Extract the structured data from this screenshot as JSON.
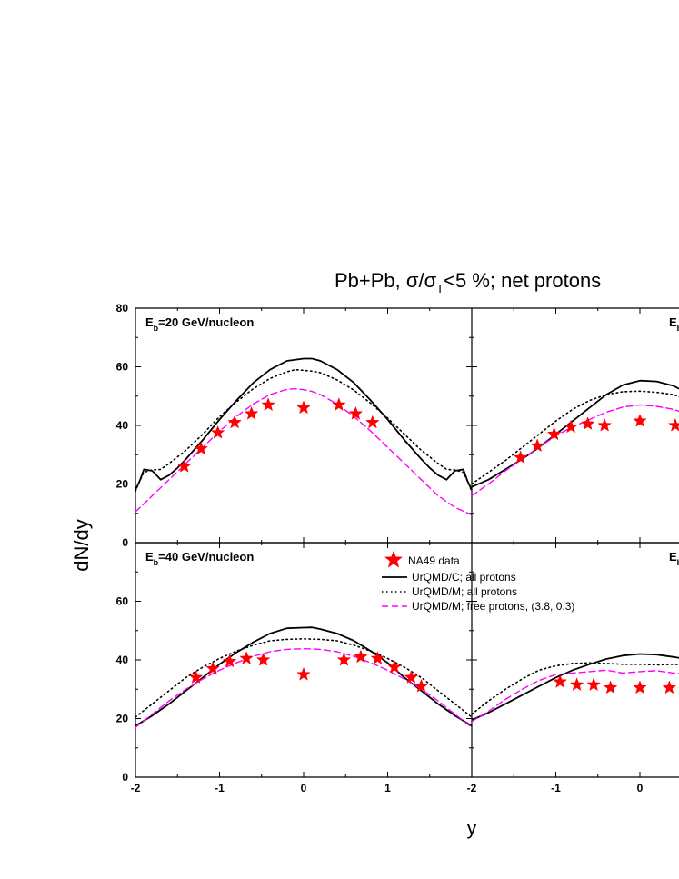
{
  "figure": {
    "title_prefix": "Pb+Pb, ",
    "title_sigma": "σ/σ",
    "title_sub": "T",
    "title_suffix": "<5 %; net protons",
    "ylabel": "dN/dy",
    "xlabel": "y"
  },
  "legend": {
    "items": [
      {
        "key": "data",
        "label": "NA49 data"
      },
      {
        "key": "c",
        "label": "UrQMD/C; all protons"
      },
      {
        "key": "m",
        "label": "UrQMD/M; all protons"
      },
      {
        "key": "free",
        "label": "UrQMD/M; free protons, (3.8, 0.3)"
      }
    ]
  },
  "colors": {
    "data": "#ff0000",
    "c": "#000000",
    "m": "#000000",
    "free": "#ff00ff"
  },
  "chart_data": [
    {
      "type": "line",
      "panel": "top-left",
      "label_main": "E",
      "label_sub": "b",
      "label_rest": "=20 GeV/nucleon",
      "xlim": [
        -2,
        2
      ],
      "ylim": [
        0,
        80
      ],
      "yticks": [
        0,
        20,
        40,
        60,
        80
      ],
      "xticks": [
        -2,
        -1,
        0,
        1,
        2
      ],
      "series": [
        {
          "name": "UrQMD/C; all protons",
          "key": "c",
          "x": [
            -2.0,
            -1.95,
            -1.9,
            -1.8,
            -1.75,
            -1.7,
            -1.6,
            -1.5,
            -1.4,
            -1.2,
            -1.0,
            -0.8,
            -0.6,
            -0.4,
            -0.2,
            0.0,
            0.1,
            0.2,
            0.4,
            0.6,
            0.8,
            1.0,
            1.2,
            1.4,
            1.5,
            1.6,
            1.7,
            1.75,
            1.8,
            1.9,
            1.95,
            2.0
          ],
          "y": [
            18,
            21,
            25,
            24.5,
            23,
            21.5,
            23,
            25.5,
            28.5,
            35,
            42,
            48.5,
            54.5,
            59,
            62,
            62.8,
            62.8,
            62,
            59,
            54.5,
            48.5,
            42,
            35,
            28.5,
            25.5,
            23,
            21.5,
            23,
            24.5,
            25,
            21,
            18
          ]
        },
        {
          "name": "UrQMD/M; all protons",
          "key": "m",
          "x": [
            -2.0,
            -1.95,
            -1.9,
            -1.8,
            -1.7,
            -1.6,
            -1.4,
            -1.2,
            -1.0,
            -0.8,
            -0.6,
            -0.4,
            -0.2,
            -0.1,
            0.0,
            0.1,
            0.2,
            0.4,
            0.6,
            0.8,
            1.0,
            1.2,
            1.4,
            1.6,
            1.7,
            1.8,
            1.9,
            1.95,
            2.0
          ],
          "y": [
            17.5,
            21,
            24,
            24.8,
            25,
            27,
            31.5,
            37,
            43,
            48,
            52.5,
            56,
            58.3,
            59,
            58.8,
            58.5,
            58,
            55.5,
            52,
            47.5,
            42.5,
            37,
            31.5,
            27,
            25,
            24.8,
            24,
            21,
            17.5
          ]
        },
        {
          "name": "UrQMD/M; free protons, (3.8, 0.3)",
          "key": "free",
          "x": [
            -2.0,
            -1.8,
            -1.6,
            -1.4,
            -1.2,
            -1.0,
            -0.8,
            -0.6,
            -0.4,
            -0.2,
            -0.1,
            0.0,
            0.1,
            0.2,
            0.4,
            0.6,
            0.8,
            1.0,
            1.2,
            1.4,
            1.6,
            1.8,
            2.0
          ],
          "y": [
            10.5,
            16,
            21.5,
            27,
            32.5,
            38,
            43,
            47.3,
            50.5,
            52.3,
            52.5,
            52.2,
            51.6,
            50.5,
            47.3,
            43,
            38,
            32.5,
            27,
            21.5,
            16,
            12,
            9.5
          ]
        },
        {
          "name": "NA49 data",
          "key": "data",
          "marker": "star",
          "x": [
            -1.42,
            -1.22,
            -1.02,
            -0.82,
            -0.62,
            -0.42,
            0.0,
            0.42,
            0.62,
            0.82
          ],
          "y": [
            26,
            32,
            37.5,
            41,
            44,
            47,
            46,
            47,
            44,
            41
          ]
        }
      ]
    },
    {
      "type": "line",
      "panel": "top-right",
      "label_main": "E",
      "label_sub": "b",
      "label_rest": "",
      "xlim": [
        -2,
        2
      ],
      "ylim": [
        0,
        80
      ],
      "series": [
        {
          "name": "UrQMD/C; all protons",
          "key": "c",
          "x": [
            -2.0,
            -1.8,
            -1.6,
            -1.4,
            -1.2,
            -1.0,
            -0.8,
            -0.6,
            -0.4,
            -0.2,
            0.0,
            0.2,
            0.4,
            0.5
          ],
          "y": [
            19,
            21.5,
            25,
            28.5,
            32.5,
            37,
            41.5,
            46,
            50.5,
            53.8,
            55.3,
            55,
            53.5,
            52
          ]
        },
        {
          "name": "UrQMD/M; all protons",
          "key": "m",
          "x": [
            -2.0,
            -1.8,
            -1.6,
            -1.4,
            -1.2,
            -1.0,
            -0.8,
            -0.6,
            -0.4,
            -0.2,
            0.0,
            0.2,
            0.4,
            0.5
          ],
          "y": [
            20,
            24,
            28,
            32.5,
            37,
            41.5,
            45.5,
            48.5,
            50.5,
            51.5,
            51.7,
            51.3,
            50.5,
            49.5
          ]
        },
        {
          "name": "UrQMD/M; free protons, (3.8, 0.3)",
          "key": "free",
          "x": [
            -2.0,
            -1.8,
            -1.6,
            -1.4,
            -1.2,
            -1.0,
            -0.8,
            -0.6,
            -0.4,
            -0.2,
            0.0,
            0.2,
            0.4,
            0.5
          ],
          "y": [
            16,
            20,
            24.5,
            28.5,
            32.5,
            36.5,
            39.5,
            42,
            44.5,
            46.3,
            47,
            46.5,
            45.5,
            44.5
          ]
        },
        {
          "name": "NA49 data",
          "key": "data",
          "marker": "star",
          "x": [
            -1.42,
            -1.22,
            -1.02,
            -0.82,
            -0.62,
            -0.42,
            0.0,
            0.42
          ],
          "y": [
            29,
            33,
            37,
            39.5,
            40.5,
            40,
            41.5,
            40
          ]
        }
      ]
    },
    {
      "type": "line",
      "panel": "bottom-left",
      "label_main": "E",
      "label_sub": "b",
      "label_rest": "=40 GeV/nucleon",
      "xlim": [
        -2,
        2
      ],
      "ylim": [
        0,
        80
      ],
      "yticks": [
        0,
        20,
        40,
        60
      ],
      "xticks": [
        -2,
        -1,
        0,
        1,
        2
      ],
      "xtick_labels": [
        "-2",
        "-1",
        "0",
        "1",
        "-2"
      ],
      "series": [
        {
          "name": "UrQMD/C; all protons",
          "key": "c",
          "x": [
            -2.0,
            -1.8,
            -1.6,
            -1.4,
            -1.2,
            -1.0,
            -0.8,
            -0.6,
            -0.4,
            -0.2,
            0.0,
            0.1,
            0.2,
            0.4,
            0.6,
            0.8,
            1.0,
            1.2,
            1.4,
            1.6,
            1.8,
            2.0
          ],
          "y": [
            17.5,
            21,
            25,
            29.5,
            34,
            38.5,
            42.5,
            46,
            49,
            50.8,
            51,
            51.1,
            50.5,
            49,
            46.5,
            43,
            39,
            34,
            29.5,
            25,
            21,
            17.5
          ]
        },
        {
          "name": "UrQMD/M; all protons",
          "key": "m",
          "x": [
            -2.0,
            -1.8,
            -1.6,
            -1.4,
            -1.2,
            -1.0,
            -0.8,
            -0.6,
            -0.4,
            -0.2,
            0.0,
            0.2,
            0.4,
            0.6,
            0.8,
            1.0,
            1.2,
            1.4,
            1.6,
            1.8,
            2.0
          ],
          "y": [
            20.5,
            25,
            29.5,
            34,
            37.5,
            40.5,
            43,
            45,
            46.5,
            47,
            47.2,
            47,
            46.5,
            45,
            43,
            40.5,
            37.5,
            34,
            29.5,
            25,
            20.5
          ]
        },
        {
          "name": "UrQMD/M; free protons, (3.8, 0.3)",
          "key": "free",
          "x": [
            -2.0,
            -1.8,
            -1.6,
            -1.4,
            -1.2,
            -1.0,
            -0.8,
            -0.6,
            -0.4,
            -0.2,
            0.0,
            0.2,
            0.4,
            0.6,
            0.8,
            1.0,
            1.2,
            1.4,
            1.6,
            1.8,
            2.0
          ],
          "y": [
            17,
            21.5,
            26,
            30,
            33.5,
            36.5,
            39,
            41.2,
            42.8,
            43.6,
            43.8,
            43.6,
            42.8,
            41.2,
            39,
            36.5,
            33.5,
            30,
            26,
            21.5,
            17
          ]
        },
        {
          "name": "NA49 data",
          "key": "data",
          "marker": "star",
          "x": [
            -1.28,
            -1.08,
            -0.88,
            -0.68,
            -0.48,
            0.0,
            0.48,
            0.68,
            0.88,
            1.08,
            1.28,
            1.4
          ],
          "y": [
            34,
            37,
            39.5,
            40.5,
            40,
            35,
            40,
            41,
            40.5,
            37.5,
            34,
            31
          ]
        }
      ]
    },
    {
      "type": "line",
      "panel": "bottom-right",
      "label_main": "E",
      "label_sub": "b",
      "label_rest": "",
      "xlim": [
        -2,
        2
      ],
      "ylim": [
        0,
        80
      ],
      "xticks": [
        -1,
        0
      ],
      "series": [
        {
          "name": "UrQMD/C; all protons",
          "key": "c",
          "x": [
            -2.0,
            -1.8,
            -1.6,
            -1.4,
            -1.2,
            -1.0,
            -0.8,
            -0.6,
            -0.4,
            -0.2,
            0.0,
            0.2,
            0.4,
            0.5
          ],
          "y": [
            19.5,
            22,
            25,
            28,
            31,
            34,
            36.5,
            38.5,
            40.3,
            41.5,
            42,
            41.8,
            41,
            40.5
          ]
        },
        {
          "name": "UrQMD/M; all protons",
          "key": "m",
          "x": [
            -2.0,
            -1.8,
            -1.6,
            -1.4,
            -1.2,
            -1.0,
            -0.8,
            -0.6,
            -0.4,
            -0.2,
            0.0,
            0.2,
            0.4,
            0.5
          ],
          "y": [
            21.5,
            26,
            30,
            33.5,
            36.5,
            38,
            38.8,
            39,
            38.8,
            38.5,
            38.5,
            38.3,
            38.5,
            38.3
          ]
        },
        {
          "name": "UrQMD/M; free protons, (3.8, 0.3)",
          "key": "free",
          "x": [
            -2.0,
            -1.8,
            -1.6,
            -1.4,
            -1.2,
            -1.0,
            -0.8,
            -0.6,
            -0.4,
            -0.2,
            0.0,
            0.2,
            0.4,
            0.5
          ],
          "y": [
            19,
            22.5,
            26.5,
            30,
            33,
            35,
            35.5,
            36,
            36.5,
            35.5,
            36,
            36.3,
            35.5,
            35.3
          ]
        },
        {
          "name": "NA49 data",
          "key": "data",
          "marker": "star",
          "x": [
            -0.95,
            -0.75,
            -0.55,
            -0.35,
            0.0,
            0.35
          ],
          "y": [
            32.5,
            31.5,
            31.5,
            30.5,
            30.5,
            30.5
          ]
        }
      ]
    }
  ]
}
